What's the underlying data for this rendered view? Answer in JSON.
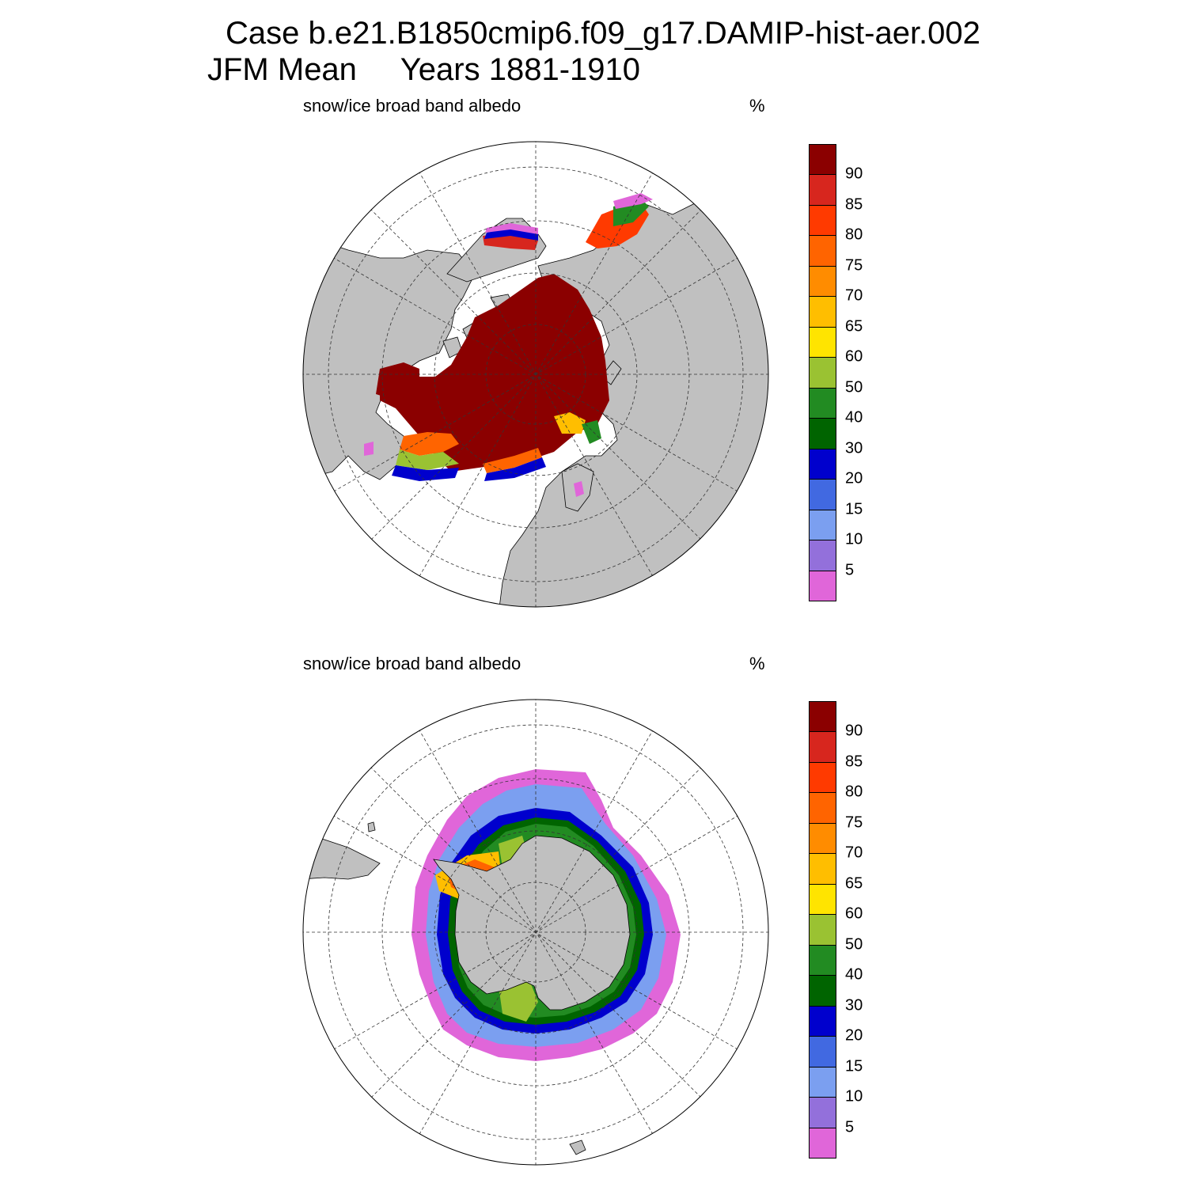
{
  "title": {
    "line1": "Case b.e21.B1850cmip6.f09_g17.DAMIP-hist-aer.002",
    "line2": "JFM Mean     Years 1881-1910"
  },
  "panels": [
    {
      "id": "north",
      "hemisphere": "Arctic (north polar stereographic)",
      "title": "snow/ice broad band albedo",
      "units": "%"
    },
    {
      "id": "south",
      "hemisphere": "Antarctic (south polar stereographic)",
      "title": "snow/ice broad band albedo",
      "units": "%"
    }
  ],
  "colorbar": {
    "labels": [
      "90",
      "85",
      "80",
      "75",
      "70",
      "65",
      "60",
      "50",
      "40",
      "30",
      "20",
      "15",
      "10",
      "5"
    ],
    "colors_top_to_bottom": [
      "#8b0000",
      "#d7261e",
      "#ff3a00",
      "#ff6400",
      "#ff8c00",
      "#ffbe00",
      "#ffe400",
      "#9ac232",
      "#228b22",
      "#006400",
      "#0000cd",
      "#4169e1",
      "#7b9ff0",
      "#9370db",
      "#e066d9"
    ]
  },
  "map_colors": {
    "land": "#c0c0c0",
    "ocean": "#ffffff",
    "grid": "#333333"
  }
}
